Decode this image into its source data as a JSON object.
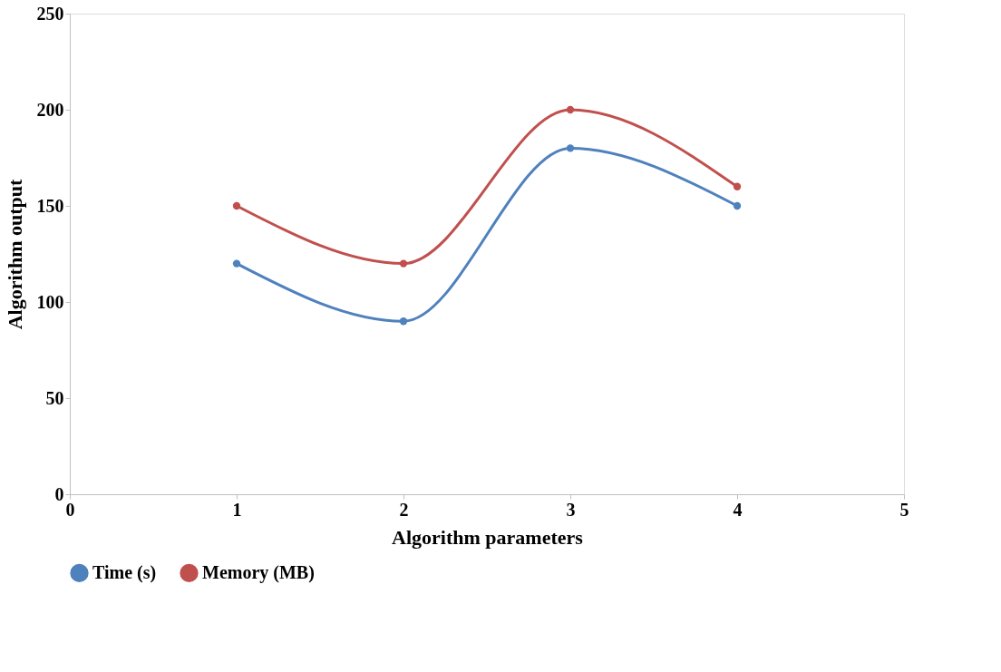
{
  "chart_data": {
    "type": "line",
    "xlabel": "Algorithm parameters",
    "ylabel": "Algorithm output",
    "x": [
      1,
      2,
      3,
      4
    ],
    "series": [
      {
        "name": "Time (s)",
        "color": "#4f81bd",
        "values": [
          120,
          90,
          180,
          150
        ]
      },
      {
        "name": "Memory (MB)",
        "color": "#c0504d",
        "values": [
          150,
          120,
          200,
          160
        ]
      }
    ],
    "xlim": [
      0,
      5
    ],
    "xticks": [
      0,
      1,
      2,
      3,
      4,
      5
    ],
    "ylim": [
      0,
      250
    ],
    "yticks": [
      0,
      50,
      100,
      150,
      200,
      250
    ],
    "grid": false,
    "legend": "bottom",
    "marker": "circle",
    "line_style": "solid"
  }
}
